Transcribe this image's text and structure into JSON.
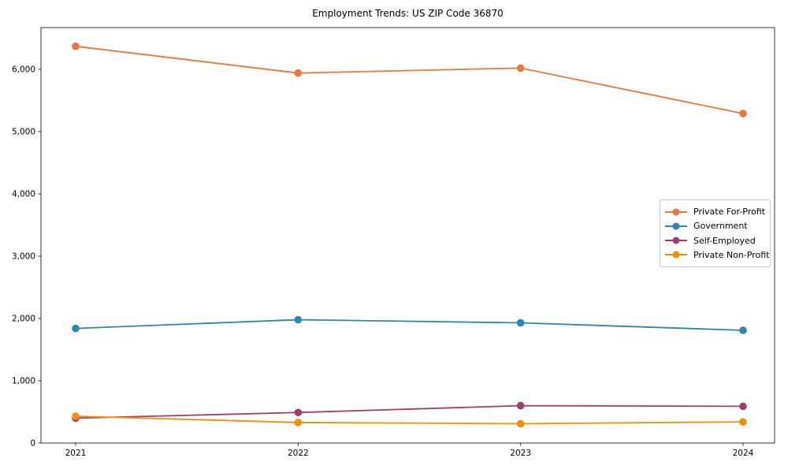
{
  "chart_data": {
    "type": "line",
    "title": "Employment Trends: US ZIP Code 36870",
    "xlabel": "",
    "ylabel": "",
    "x_tick_labels": [
      "2021",
      "2022",
      "2023",
      "2024"
    ],
    "y_ticks": [
      0,
      1000,
      2000,
      3000,
      4000,
      5000,
      6000
    ],
    "y_tick_labels": [
      "0",
      "1,000",
      "2,000",
      "3,000",
      "4,000",
      "5,000",
      "6,000"
    ],
    "ylim": [
      0,
      6670
    ],
    "grid": false,
    "legend_position": "center right",
    "series": [
      {
        "name": "Private For-Profit",
        "color": "#e8773d",
        "values": [
          6370,
          5940,
          6020,
          5290
        ]
      },
      {
        "name": "Government",
        "color": "#2e86ab",
        "values": [
          1840,
          1980,
          1930,
          1810
        ]
      },
      {
        "name": "Self-Employed",
        "color": "#a23b72",
        "values": [
          400,
          490,
          600,
          590
        ]
      },
      {
        "name": "Private Non-Profit",
        "color": "#f18f01",
        "values": [
          430,
          330,
          310,
          340
        ]
      }
    ]
  }
}
